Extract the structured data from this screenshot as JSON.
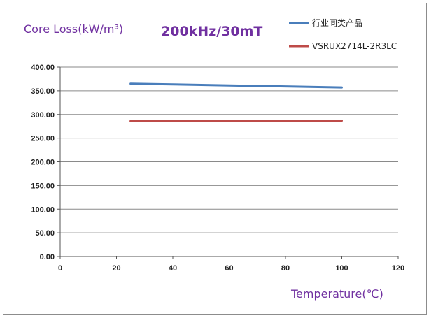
{
  "chart_data": {
    "type": "line",
    "title": "200kHz/30mT",
    "ylabel": "Core Loss(kW/m³)",
    "xlabel": "Temperature(℃)",
    "xlim": [
      0,
      120
    ],
    "ylim": [
      0,
      400
    ],
    "xticks": [
      0,
      20,
      40,
      60,
      80,
      100,
      120
    ],
    "yticks": [
      0,
      50,
      100,
      150,
      200,
      250,
      300,
      350,
      400
    ],
    "ytick_labels": [
      "0.00",
      "50.00",
      "100.00",
      "150.00",
      "200.00",
      "250.00",
      "300.00",
      "350.00",
      "400.00"
    ],
    "grid": "horizontal",
    "legend_position": "top-right",
    "series": [
      {
        "name": "行业同类产品",
        "color": "#4a7ebb",
        "x": [
          25,
          100
        ],
        "y": [
          365,
          357
        ]
      },
      {
        "name": "VSRUX2714L-2R3LC",
        "color": "#be4b48",
        "x": [
          25,
          100
        ],
        "y": [
          286,
          287
        ]
      }
    ]
  }
}
